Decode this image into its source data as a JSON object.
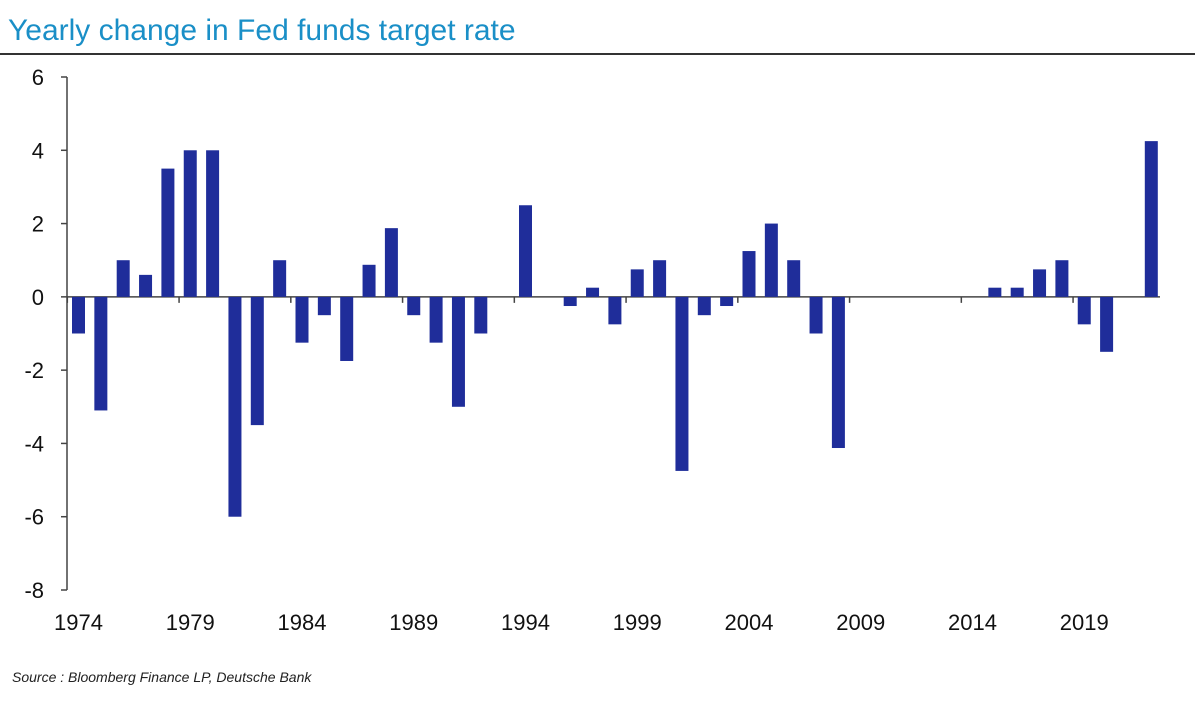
{
  "chart_data": {
    "type": "bar",
    "title": "Yearly change in Fed funds target rate",
    "xlabel": "",
    "ylabel": "",
    "ylim": [
      -8,
      6
    ],
    "yticks": [
      6,
      4,
      2,
      0,
      -2,
      -4,
      -6,
      -8
    ],
    "xticks": [
      1974,
      1979,
      1984,
      1989,
      1994,
      1999,
      2004,
      2009,
      2014,
      2019
    ],
    "grid": false,
    "bar_color": "#1f2d9a",
    "categories": [
      1974,
      1975,
      1976,
      1977,
      1978,
      1979,
      1980,
      1981,
      1982,
      1983,
      1984,
      1985,
      1986,
      1987,
      1988,
      1989,
      1990,
      1991,
      1992,
      1993,
      1994,
      1995,
      1996,
      1997,
      1998,
      1999,
      2000,
      2001,
      2002,
      2003,
      2004,
      2005,
      2006,
      2007,
      2008,
      2009,
      2010,
      2011,
      2012,
      2013,
      2014,
      2015,
      2016,
      2017,
      2018,
      2019,
      2020,
      2021,
      2022
    ],
    "values": [
      -1.0,
      -3.1,
      1.0,
      0.6,
      3.5,
      4.0,
      4.0,
      -6.0,
      -3.5,
      1.0,
      -1.25,
      -0.5,
      -1.75,
      0.875,
      1.875,
      -0.5,
      -1.25,
      -3.0,
      -1.0,
      0.0,
      2.5,
      0.0,
      -0.25,
      0.25,
      -0.75,
      0.75,
      1.0,
      -4.75,
      -0.5,
      -0.25,
      1.25,
      2.0,
      1.0,
      -1.0,
      -4.125,
      0.0,
      0.0,
      0.0,
      0.0,
      0.0,
      0.0,
      0.25,
      0.25,
      0.75,
      1.0,
      -0.75,
      -1.5,
      0.0,
      4.25
    ]
  },
  "source": "Source : Bloomberg Finance LP, Deutsche Bank"
}
